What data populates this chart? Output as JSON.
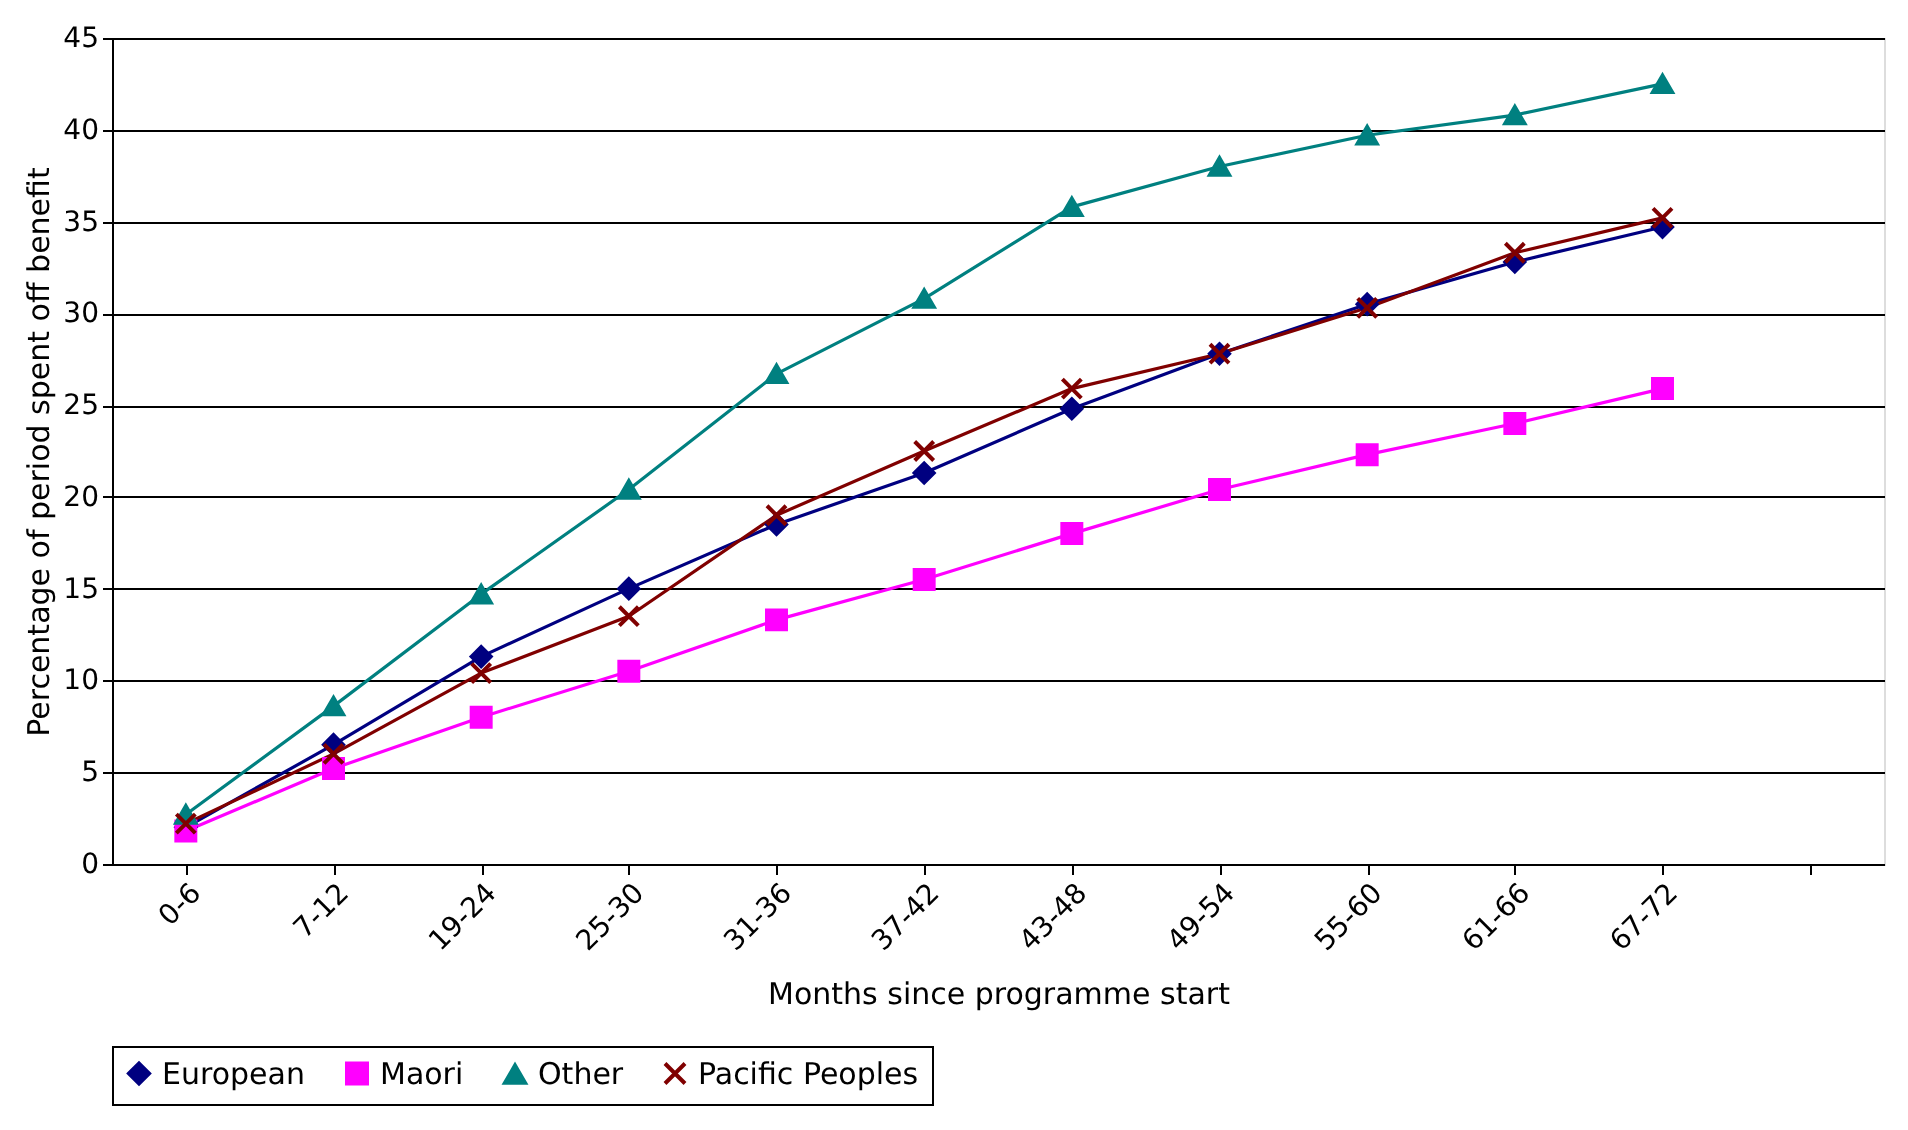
{
  "chart_data": {
    "type": "line",
    "xlabel": "Months since programme start",
    "ylabel": "Percentage of period spent off benefit",
    "categories": [
      "0-6",
      "7-12",
      "19-24",
      "25-30",
      "31-36",
      "37-42",
      "43-48",
      "49-54",
      "55-60",
      "61-66",
      "67-72",
      null
    ],
    "ylim": [
      0,
      45
    ],
    "yticks": [
      0,
      5,
      10,
      15,
      20,
      25,
      30,
      35,
      40,
      45
    ],
    "grid": "y",
    "legend": "bottom",
    "series": [
      {
        "name": "European",
        "color": "#000080",
        "marker": "diamond",
        "values": [
          2.0,
          6.5,
          11.3,
          15.0,
          18.5,
          21.3,
          24.8,
          27.8,
          30.5,
          32.8,
          34.7,
          null
        ]
      },
      {
        "name": "Maori",
        "color": "#ff00ff",
        "marker": "square",
        "values": [
          1.8,
          5.2,
          8.0,
          10.5,
          13.3,
          15.5,
          18.0,
          20.4,
          22.3,
          24.0,
          25.9,
          null
        ]
      },
      {
        "name": "Other",
        "color": "#008080",
        "marker": "triangle",
        "values": [
          2.7,
          8.6,
          14.7,
          20.4,
          26.7,
          30.8,
          35.8,
          38.0,
          39.7,
          40.8,
          42.5,
          null
        ]
      },
      {
        "name": "Pacific Peoples",
        "color": "#800000",
        "marker": "cross",
        "values": [
          2.2,
          6.0,
          10.4,
          13.5,
          19.0,
          22.5,
          25.9,
          27.8,
          30.3,
          33.3,
          35.2,
          null
        ]
      }
    ]
  }
}
